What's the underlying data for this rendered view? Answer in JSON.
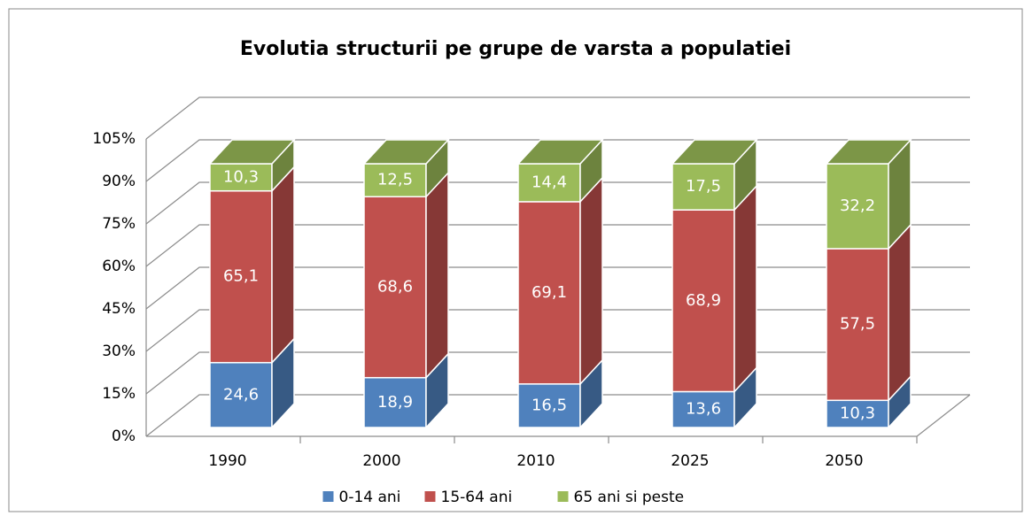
{
  "chart_data": {
    "type": "bar3d_stacked",
    "title": "Evolutia structurii pe grupe de varsta a populatiei",
    "categories": [
      "1990",
      "2000",
      "2010",
      "2025",
      "2050"
    ],
    "series": [
      {
        "name": "0-14 ani",
        "color": "#4f81bd",
        "values": [
          24.6,
          18.9,
          16.5,
          13.6,
          10.3
        ],
        "value_labels": [
          "24,6",
          "18,9",
          "16,5",
          "13,6",
          "10,3"
        ]
      },
      {
        "name": "15-64 ani",
        "color": "#c0504d",
        "values": [
          65.1,
          68.6,
          69.1,
          68.9,
          57.5
        ],
        "value_labels": [
          "65,1",
          "68,6",
          "69,1",
          "68,9",
          "57,5"
        ]
      },
      {
        "name": "65 ani si peste",
        "color": "#9bbb59",
        "values": [
          10.3,
          12.5,
          14.4,
          17.5,
          32.2
        ],
        "value_labels": [
          "10,3",
          "12,5",
          "14,4",
          "17,5",
          "32,2"
        ]
      }
    ],
    "ylim": [
      0,
      105
    ],
    "yticks": [
      {
        "value": 0,
        "label": "0%"
      },
      {
        "value": 15,
        "label": "15%"
      },
      {
        "value": 30,
        "label": "30%"
      },
      {
        "value": 45,
        "label": "45%"
      },
      {
        "value": 60,
        "label": "60%"
      },
      {
        "value": 75,
        "label": "75%"
      },
      {
        "value": 90,
        "label": "90%"
      },
      {
        "value": 105,
        "label": "105%"
      }
    ],
    "grid": true,
    "legend": "bottom"
  }
}
